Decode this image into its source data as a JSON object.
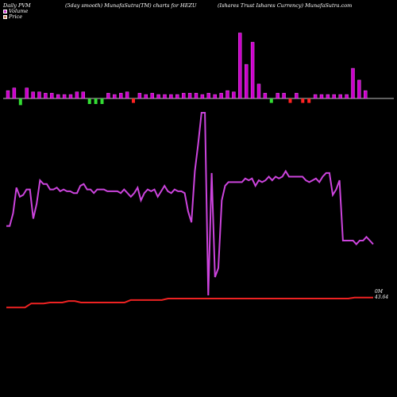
{
  "header": {
    "left": "Daily PVM",
    "middle": "(5day smooth) MunafaSutra(TM) charts for HEZU",
    "right": "(Ishares Trust Ishares Currency) MunafaSutra.com"
  },
  "legend": {
    "volume_label": "Volume",
    "price_label": "Price",
    "volume_color": "#cc33cc",
    "price_color": "#cc8866"
  },
  "labels": {
    "volume_end": "0M",
    "price_end": "43.64"
  },
  "colors": {
    "background": "#000000",
    "up_bar": "#cc00cc",
    "down_bar": "#33dd33",
    "red_bar": "#ff2222",
    "volume_line": "#cc44dd",
    "price_line": "#ee2222",
    "baseline": "#ffffff"
  },
  "chart_data": {
    "type": "line",
    "bars": [
      {
        "v": 0.6,
        "c": "up"
      },
      {
        "v": 0.8,
        "c": "up"
      },
      {
        "v": 0.6,
        "c": "down"
      },
      {
        "v": 0.8,
        "c": "up"
      },
      {
        "v": 0.5,
        "c": "up"
      },
      {
        "v": 0.5,
        "c": "up"
      },
      {
        "v": 0.4,
        "c": "up"
      },
      {
        "v": 0.4,
        "c": "up"
      },
      {
        "v": 0.3,
        "c": "up"
      },
      {
        "v": 0.3,
        "c": "up"
      },
      {
        "v": 0.3,
        "c": "up"
      },
      {
        "v": 0.5,
        "c": "up"
      },
      {
        "v": 0.5,
        "c": "up"
      },
      {
        "v": 0.5,
        "c": "down"
      },
      {
        "v": 0.5,
        "c": "down"
      },
      {
        "v": 0.5,
        "c": "down"
      },
      {
        "v": 0.4,
        "c": "up"
      },
      {
        "v": 0.3,
        "c": "up"
      },
      {
        "v": 0.4,
        "c": "up"
      },
      {
        "v": 0.5,
        "c": "up"
      },
      {
        "v": 0.4,
        "c": "red"
      },
      {
        "v": 0.4,
        "c": "up"
      },
      {
        "v": 0.3,
        "c": "up"
      },
      {
        "v": 0.4,
        "c": "up"
      },
      {
        "v": 0.3,
        "c": "up"
      },
      {
        "v": 0.3,
        "c": "up"
      },
      {
        "v": 0.3,
        "c": "up"
      },
      {
        "v": 0.3,
        "c": "up"
      },
      {
        "v": 0.4,
        "c": "up"
      },
      {
        "v": 0.4,
        "c": "up"
      },
      {
        "v": 0.4,
        "c": "up"
      },
      {
        "v": 0.3,
        "c": "up"
      },
      {
        "v": 0.4,
        "c": "up"
      },
      {
        "v": 0.3,
        "c": "up"
      },
      {
        "v": 0.4,
        "c": "up"
      },
      {
        "v": 0.6,
        "c": "up"
      },
      {
        "v": 0.5,
        "c": "up"
      },
      {
        "v": 5.0,
        "c": "up"
      },
      {
        "v": 2.6,
        "c": "up"
      },
      {
        "v": 4.3,
        "c": "up"
      },
      {
        "v": 1.1,
        "c": "up"
      },
      {
        "v": 0.4,
        "c": "up"
      },
      {
        "v": 0.4,
        "c": "down"
      },
      {
        "v": 0.4,
        "c": "up"
      },
      {
        "v": 0.4,
        "c": "up"
      },
      {
        "v": 0.4,
        "c": "red"
      },
      {
        "v": 0.4,
        "c": "up"
      },
      {
        "v": 0.4,
        "c": "red"
      },
      {
        "v": 0.4,
        "c": "red"
      },
      {
        "v": 0.3,
        "c": "up"
      },
      {
        "v": 0.3,
        "c": "up"
      },
      {
        "v": 0.3,
        "c": "up"
      },
      {
        "v": 0.3,
        "c": "up"
      },
      {
        "v": 0.3,
        "c": "up"
      },
      {
        "v": 0.3,
        "c": "up"
      },
      {
        "v": 2.3,
        "c": "up"
      },
      {
        "v": 1.4,
        "c": "up"
      },
      {
        "v": 0.6,
        "c": "up"
      }
    ],
    "volume_line": [
      38,
      38,
      45,
      59,
      54,
      55,
      58,
      58,
      42,
      50,
      63,
      61,
      61,
      58,
      58,
      59,
      57,
      58,
      57,
      57,
      56,
      56,
      60,
      61,
      58,
      58,
      56,
      58,
      58,
      58,
      57,
      57,
      57,
      57,
      56,
      58,
      56,
      54,
      56,
      59,
      52,
      56,
      58,
      57,
      58,
      54,
      57,
      60,
      57,
      56,
      58,
      57,
      57,
      56,
      46,
      40,
      68,
      83,
      100,
      100,
      0,
      67,
      10,
      15,
      52,
      60,
      62,
      62,
      62,
      62,
      62,
      64,
      63,
      64,
      60,
      63,
      62,
      63,
      65,
      63,
      65,
      64,
      65,
      68,
      65,
      65,
      65,
      65,
      65,
      63,
      62,
      63,
      64,
      62,
      65,
      67,
      67,
      55,
      58,
      63,
      30,
      30,
      30,
      30,
      28,
      30,
      30,
      32,
      30,
      28
    ],
    "price_line": [
      40,
      40,
      40,
      40,
      48,
      48,
      48,
      50,
      50,
      50,
      53,
      53,
      50,
      50,
      50,
      50,
      50,
      50,
      50,
      50,
      55,
      55,
      55,
      55,
      55,
      55,
      58,
      58,
      58,
      58,
      58,
      58,
      58,
      58,
      58,
      58,
      58,
      58,
      58,
      58,
      58,
      58,
      58,
      58,
      58,
      58,
      58,
      58,
      58,
      58,
      58,
      58,
      58,
      58,
      58,
      58,
      60,
      60,
      60,
      60
    ]
  }
}
